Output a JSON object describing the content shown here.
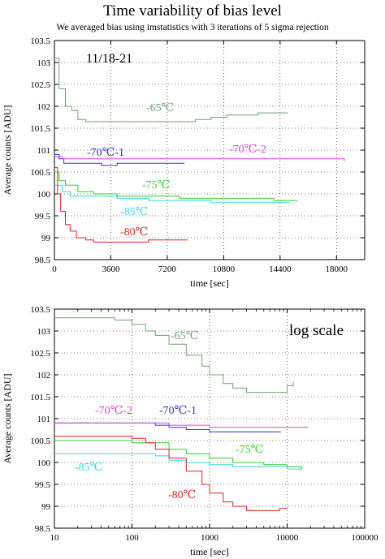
{
  "title": "Time variability of bias level",
  "subtitle": "We averaged bias using imstatistics with 3 iterations of 5 sigma rejection",
  "chart_data": [
    {
      "type": "line",
      "xscale": "linear",
      "xlim": [
        0,
        19800
      ],
      "ylim": [
        98.5,
        103.5
      ],
      "xticks": [
        "0",
        "3600",
        "7200",
        "10800",
        "14400",
        "18000"
      ],
      "yticks": [
        "98.5",
        "99",
        "99.5",
        "100",
        "100.5",
        "101",
        "101.5",
        "102",
        "102.5",
        "103",
        "103.5"
      ],
      "xlabel": "time [sec]",
      "ylabel": "Average counts [ADU]",
      "annotation": "11/18-21",
      "grid": true,
      "series": [
        {
          "name": "-65℃",
          "color": "#6fa36f",
          "x": [
            0,
            300,
            700,
            1100,
            1500,
            2000,
            3000,
            4000,
            5000,
            6000,
            7000,
            8000,
            9000,
            10000,
            11000,
            12000,
            13000,
            14000,
            14900
          ],
          "y": [
            103.1,
            102.4,
            102.0,
            101.9,
            101.7,
            101.65,
            101.65,
            101.65,
            101.65,
            101.65,
            101.65,
            101.65,
            101.7,
            101.75,
            101.8,
            101.8,
            101.85,
            101.85,
            101.85
          ]
        },
        {
          "name": "-70℃-1",
          "color": "#3333cc",
          "x": [
            0,
            300,
            600,
            1000,
            2000,
            3000,
            4000,
            5000,
            6000,
            7000,
            8000,
            8300
          ],
          "y": [
            100.9,
            100.8,
            100.7,
            100.7,
            100.7,
            100.65,
            100.7,
            100.7,
            100.7,
            100.7,
            100.7,
            100.7
          ]
        },
        {
          "name": "-70℃-2",
          "color": "#e040e0",
          "x": [
            0,
            500,
            2000,
            5000,
            8000,
            11000,
            14000,
            16000,
            17000,
            18000,
            18500
          ],
          "y": [
            100.85,
            100.8,
            100.8,
            100.8,
            100.8,
            100.8,
            100.8,
            100.8,
            100.8,
            100.8,
            100.75
          ]
        },
        {
          "name": "-75℃",
          "color": "#33cc33",
          "x": [
            0,
            300,
            700,
            1500,
            2500,
            4000,
            6000,
            8000,
            10000,
            12000,
            14000,
            15500
          ],
          "y": [
            100.5,
            100.3,
            100.2,
            100.05,
            100.0,
            99.95,
            99.95,
            99.9,
            99.9,
            99.9,
            99.85,
            99.85
          ]
        },
        {
          "name": "-85℃",
          "color": "#33dddd",
          "x": [
            0,
            500,
            1000,
            2000,
            4000,
            6000,
            8000,
            10000,
            12000,
            14000,
            15000
          ],
          "y": [
            100.2,
            100.05,
            99.95,
            99.95,
            99.9,
            99.85,
            99.85,
            99.8,
            99.8,
            99.8,
            99.78
          ]
        },
        {
          "name": "-80℃",
          "color": "#e02020",
          "x": [
            0,
            200,
            400,
            700,
            1000,
            1400,
            2000,
            2500,
            3000,
            4000,
            5000,
            6000,
            7000,
            8000,
            8500
          ],
          "y": [
            100.6,
            100.0,
            99.6,
            99.3,
            99.15,
            99.0,
            98.95,
            98.9,
            98.9,
            98.9,
            98.9,
            98.95,
            98.95,
            98.95,
            98.95
          ]
        }
      ]
    },
    {
      "type": "line",
      "xscale": "log",
      "xlim": [
        10,
        100000
      ],
      "ylim": [
        98.5,
        103.5
      ],
      "xticks": [
        "10",
        "100",
        "1000",
        "10000",
        "100000"
      ],
      "yticks": [
        "98.5",
        "99",
        "99.5",
        "100",
        "100.5",
        "101",
        "101.5",
        "102",
        "102.5",
        "103",
        "103.5"
      ],
      "xlabel": "time [sec]",
      "ylabel": "Average counts [ADU]",
      "annotation": "log scale",
      "grid": true,
      "series": [
        {
          "name": "-65℃",
          "color": "#6fa36f",
          "x": [
            10,
            30,
            60,
            100,
            150,
            200,
            300,
            500,
            800,
            1000,
            1500,
            2000,
            3000,
            5000,
            8000,
            10000,
            12000
          ],
          "y": [
            103.3,
            103.3,
            103.25,
            103.15,
            103.0,
            102.9,
            102.7,
            102.45,
            102.2,
            102.0,
            101.8,
            101.7,
            101.6,
            101.6,
            101.6,
            101.75,
            101.85
          ]
        },
        {
          "name": "-70℃-1",
          "color": "#3333cc",
          "x": [
            10,
            100,
            200,
            300,
            500,
            1000,
            2000,
            5000,
            8300
          ],
          "y": [
            100.9,
            100.9,
            100.85,
            100.8,
            100.75,
            100.7,
            100.7,
            100.7,
            100.7
          ]
        },
        {
          "name": "-70℃-2",
          "color": "#e040e0",
          "x": [
            10,
            100,
            300,
            1000,
            3000,
            10000,
            18500
          ],
          "y": [
            100.9,
            100.9,
            100.85,
            100.8,
            100.8,
            100.8,
            100.8
          ]
        },
        {
          "name": "-75℃",
          "color": "#33cc33",
          "x": [
            10,
            50,
            100,
            300,
            500,
            1000,
            2000,
            5000,
            10000,
            15500
          ],
          "y": [
            100.5,
            100.5,
            100.45,
            100.3,
            100.2,
            100.1,
            100.0,
            99.95,
            99.9,
            99.85
          ]
        },
        {
          "name": "-85℃",
          "color": "#33dddd",
          "x": [
            10,
            50,
            100,
            200,
            300,
            500,
            1000,
            2000,
            5000,
            10000,
            15000
          ],
          "y": [
            100.2,
            100.2,
            100.2,
            100.15,
            100.05,
            100.0,
            99.95,
            99.9,
            99.9,
            99.85,
            99.8
          ]
        },
        {
          "name": "-80℃",
          "color": "#e02020",
          "x": [
            10,
            50,
            100,
            150,
            200,
            300,
            500,
            800,
            1000,
            1500,
            2000,
            3000,
            5000,
            8000,
            10000
          ],
          "y": [
            100.6,
            100.6,
            100.55,
            100.45,
            100.3,
            100.1,
            99.8,
            99.5,
            99.3,
            99.1,
            99.0,
            98.9,
            98.9,
            98.95,
            98.95
          ]
        }
      ]
    }
  ]
}
